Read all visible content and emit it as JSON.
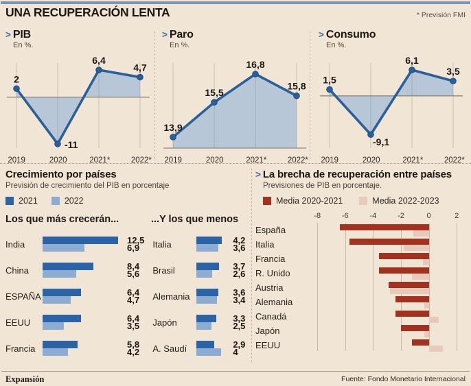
{
  "header": {
    "title": "UNA RECUPERACIÓN LENTA",
    "note": "* Previsión FMI"
  },
  "icons": {
    "chevron": ">"
  },
  "footer": {
    "brand": "Expansión",
    "source": "Fuente: Fondo Monetario Internacional"
  },
  "colors": {
    "background": "#f1e5d6",
    "top_bar": "#7b95b7",
    "line": "#2b5f97",
    "area_fill": "#b8c7d7",
    "axis_gray": "#8f877b",
    "grid": "rgba(90,80,70,0.25)",
    "bar_2021": "#2b63a6",
    "bar_2022": "#8cacd4",
    "bar_media_2020_2021": "#a3311f",
    "bar_media_2022_2023": "#e9c9ba"
  },
  "chart_data": {
    "line_charts": [
      {
        "type": "line",
        "title": "PIB",
        "units_label": "En %.",
        "baseline": "zero",
        "x": [
          "2019",
          "2020",
          "2021*",
          "2022*"
        ],
        "values": [
          2,
          -11,
          6.4,
          4.7
        ],
        "labels": [
          "2",
          "-11",
          "6,4",
          "4,7"
        ]
      },
      {
        "type": "line",
        "title": "Paro",
        "units_label": "En %.",
        "baseline": "bottom",
        "x": [
          "2019",
          "2020",
          "2021*",
          "2022*"
        ],
        "values": [
          13.9,
          15.5,
          16.8,
          15.8
        ],
        "labels": [
          "13,9",
          "15,5",
          "16,8",
          "15,8"
        ]
      },
      {
        "type": "line",
        "title": "Consumo",
        "units_label": "En %.",
        "baseline": "zero",
        "x": [
          "2019",
          "2020",
          "2021*",
          "2022*"
        ],
        "values": [
          1.5,
          -9.1,
          6.1,
          3.5
        ],
        "labels": [
          "1,5",
          "-9,1",
          "6,1",
          "3,5"
        ]
      }
    ],
    "growth_bars": {
      "type": "bar",
      "title": "Crecimiento por países",
      "subtitle": "Previsión de crecimiento del PIB en porcentaje",
      "legend": [
        {
          "label": "2021",
          "color": "#2b63a6"
        },
        {
          "label": "2022",
          "color": "#8cacd4"
        }
      ],
      "groups": [
        {
          "header": "Los que más crecerán...",
          "rows": [
            {
              "country": "India",
              "values": [
                12.5,
                6.9
              ],
              "labels": [
                "12,5",
                "6,9"
              ]
            },
            {
              "country": "China",
              "values": [
                8.4,
                5.6
              ],
              "labels": [
                "8,4",
                "5,6"
              ]
            },
            {
              "country": "ESPAÑA",
              "values": [
                6.4,
                4.7
              ],
              "labels": [
                "6,4",
                "4,7"
              ]
            },
            {
              "country": "EEUU",
              "values": [
                6.4,
                3.5
              ],
              "labels": [
                "6,4",
                "3,5"
              ]
            },
            {
              "country": "Francia",
              "values": [
                5.8,
                4.2
              ],
              "labels": [
                "5,8",
                "4,2"
              ]
            }
          ]
        },
        {
          "header": "...Y los que menos",
          "rows": [
            {
              "country": "Italia",
              "values": [
                4.2,
                3.6
              ],
              "labels": [
                "4,2",
                "3,6"
              ]
            },
            {
              "country": "Brasil",
              "values": [
                3.7,
                2.6
              ],
              "labels": [
                "3,7",
                "2,6"
              ]
            },
            {
              "country": "Alemania",
              "values": [
                3.6,
                3.4
              ],
              "labels": [
                "3,6",
                "3,4"
              ]
            },
            {
              "country": "Japón",
              "values": [
                3.3,
                2.5
              ],
              "labels": [
                "3,3",
                "2,5"
              ]
            },
            {
              "country": "A. Saudí",
              "values": [
                2.9,
                4
              ],
              "labels": [
                "2,9",
                "4"
              ]
            }
          ]
        }
      ]
    },
    "gap_chart": {
      "type": "bar",
      "title": "La brecha de recuperación entre países",
      "subtitle": "Previsiones de PIB en porcentaje.",
      "legend": [
        {
          "label": "Media 2020-2021",
          "color": "#a3311f"
        },
        {
          "label": "Media 2022-2023",
          "color": "#e9c9ba"
        }
      ],
      "axis_ticks": [
        "-8",
        "-6",
        "-4",
        "-2",
        "0",
        "2"
      ],
      "xlim": [
        -8.6,
        2.6
      ],
      "series_names": [
        "Media 2020-2021",
        "Media 2022-2023"
      ],
      "rows": [
        {
          "country": "España",
          "values": [
            -6.4,
            -1.1
          ]
        },
        {
          "country": "Italia",
          "values": [
            -5.7,
            -1.8
          ]
        },
        {
          "country": "Francia",
          "values": [
            -3.6,
            -0.4
          ]
        },
        {
          "country": "R. Unido",
          "values": [
            -3.6,
            -1.2
          ]
        },
        {
          "country": "Austria",
          "values": [
            -2.9,
            -2.8
          ]
        },
        {
          "country": "Alemania",
          "values": [
            -2.4,
            -0.3
          ]
        },
        {
          "country": "Canadá",
          "values": [
            -2.4,
            0.7
          ]
        },
        {
          "country": "Japón",
          "values": [
            -2.0,
            -0.3
          ]
        },
        {
          "country": "EEUU",
          "values": [
            -1.2,
            1.0
          ]
        }
      ]
    }
  }
}
